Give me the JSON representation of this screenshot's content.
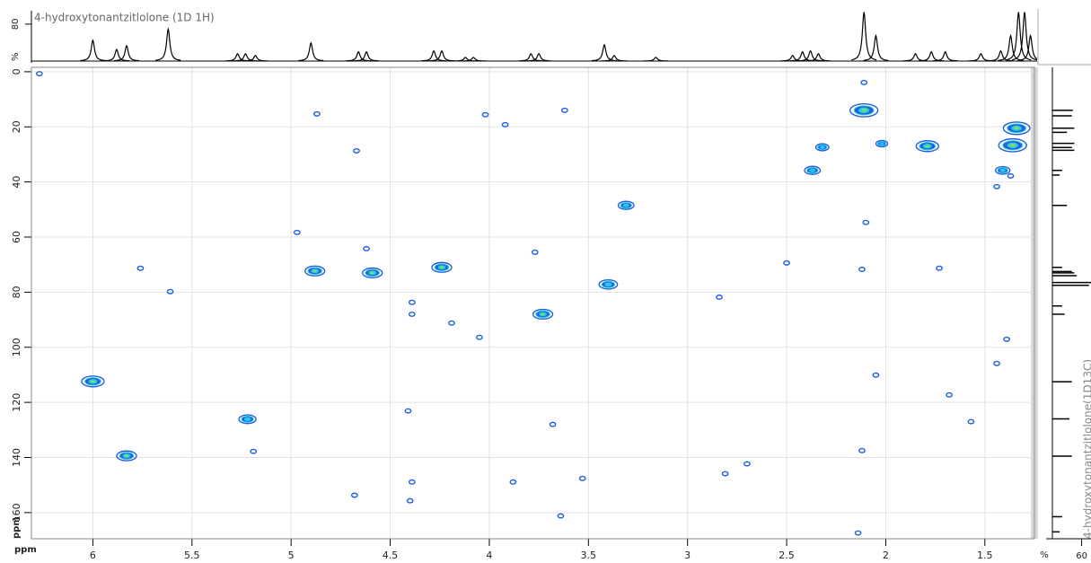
{
  "chart_data": [
    {
      "type": "scatter",
      "xlabel": "ppm",
      "ylabel": "ppm",
      "grid": true,
      "xlim": [
        6.31,
        1.25
      ],
      "ylim": [
        -1.6,
        169.5
      ],
      "xticks": [
        6,
        5.5,
        5,
        4.5,
        4,
        3.5,
        3,
        2.5,
        2,
        1.5
      ],
      "yticks": [
        0,
        20,
        40,
        60,
        80,
        100,
        120,
        140,
        160
      ],
      "colors": [
        "#1f5fe0",
        "#27c8e8",
        "#7ee05a"
      ],
      "x": [
        6.0,
        5.83,
        5.22,
        4.88,
        4.59,
        4.24,
        3.73,
        3.4,
        3.31,
        2.11,
        2.37,
        2.32,
        2.02,
        1.79,
        1.41,
        1.34,
        1.36,
        6.27,
        5.76,
        5.61,
        4.87,
        4.67,
        4.97,
        4.62,
        4.39,
        4.39,
        4.19,
        4.05,
        4.02,
        3.92,
        3.62,
        3.77,
        2.84,
        4.41,
        4.39,
        4.4,
        4.68,
        5.19,
        3.68,
        3.53,
        3.64,
        3.88,
        2.81,
        2.7,
        2.11,
        2.05,
        2.1,
        2.12,
        2.5,
        2.12,
        2.14,
        1.57,
        1.39,
        1.44,
        1.68,
        1.73,
        1.44,
        1.37
      ],
      "values": [
        112.4,
        139.4,
        126.1,
        72.3,
        73.0,
        71.0,
        88.0,
        77.2,
        48.5,
        14.0,
        35.8,
        27.4,
        26.1,
        27.0,
        35.8,
        20.5,
        26.7,
        0.7,
        71.3,
        79.8,
        15.3,
        28.7,
        58.3,
        64.2,
        83.7,
        88.0,
        91.2,
        96.4,
        15.6,
        19.2,
        14.0,
        65.5,
        81.8,
        123.1,
        148.9,
        155.7,
        153.7,
        137.8,
        128.0,
        147.6,
        161.2,
        148.9,
        145.9,
        142.3,
        3.9,
        110.1,
        54.7,
        71.7,
        69.4,
        137.5,
        167.4,
        127.0,
        97.1,
        105.9,
        117.3,
        71.3,
        41.7,
        37.8
      ],
      "intensity": [
        70,
        60,
        50,
        60,
        60,
        60,
        60,
        55,
        45,
        90,
        45,
        35,
        30,
        70,
        40,
        85,
        90,
        8,
        8,
        8,
        8,
        8,
        8,
        8,
        8,
        8,
        8,
        8,
        8,
        8,
        8,
        8,
        8,
        8,
        8,
        8,
        8,
        8,
        8,
        8,
        8,
        8,
        8,
        8,
        8,
        8,
        8,
        8,
        8,
        8,
        8,
        8,
        8,
        8,
        8,
        8,
        8,
        8
      ]
    },
    {
      "type": "spectrum",
      "title": "4-hydroxytonantzitlolone (1D 1H)",
      "ylabel": "%",
      "color": "#000000",
      "xlim": [
        6.31,
        1.25
      ],
      "ylim": [
        0,
        105
      ],
      "yticks": [
        80
      ],
      "x": [
        6.0,
        5.88,
        5.83,
        5.62,
        5.27,
        5.23,
        5.18,
        4.9,
        4.66,
        4.62,
        4.28,
        4.24,
        4.12,
        4.08,
        3.79,
        3.75,
        3.42,
        3.37,
        3.16,
        2.47,
        2.42,
        2.38,
        2.34,
        2.11,
        2.05,
        1.85,
        1.77,
        1.7,
        1.52,
        1.42,
        1.37,
        1.33,
        1.3,
        1.27
      ],
      "values": [
        45,
        25,
        33,
        69,
        16,
        16,
        12,
        39,
        20,
        20,
        22,
        22,
        8,
        8,
        16,
        16,
        35,
        12,
        8,
        12,
        20,
        22,
        16,
        106,
        55,
        16,
        20,
        20,
        16,
        22,
        55,
        106,
        106,
        55
      ]
    },
    {
      "type": "stick",
      "title": "4-hydroxytonantzitlolone(1D13C)",
      "xlabel": "%",
      "color": "#000000",
      "xlim": [
        0,
        70
      ],
      "xticks": [
        60
      ],
      "ylim": [
        -1.6,
        169.5
      ],
      "positions": [
        14,
        16,
        20.5,
        22,
        26,
        27.5,
        28.5,
        35.8,
        37.5,
        48.5,
        71,
        72.5,
        73,
        74,
        76.5,
        77.5,
        85,
        88,
        112.5,
        126,
        139.5,
        161.5,
        167
      ],
      "values": [
        42,
        40,
        45,
        30,
        45,
        40,
        45,
        20,
        15,
        30,
        20,
        40,
        45,
        50,
        80,
        75,
        20,
        25,
        40,
        35,
        40,
        20,
        15
      ]
    }
  ]
}
